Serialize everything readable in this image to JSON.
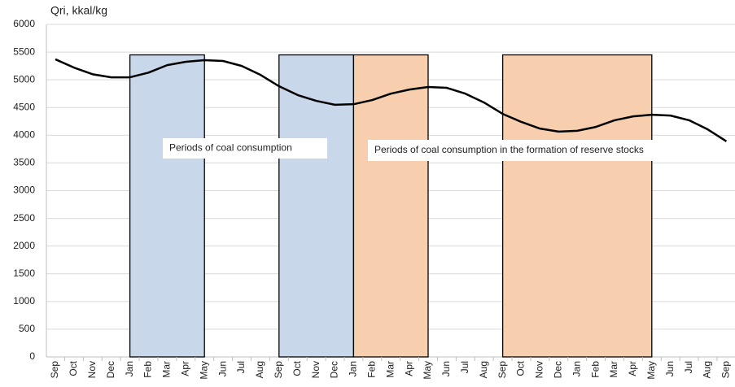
{
  "chart_data": {
    "type": "line",
    "y_axis_label": "Qri, kkal/kg",
    "categories": [
      "Sep",
      "Oct",
      "Nov",
      "Dec",
      "Jan",
      "Feb",
      "Mar",
      "Apr",
      "May",
      "Jun",
      "Jul",
      "Aug",
      "Sep",
      "Oct",
      "Nov",
      "Dec",
      "Jan",
      "Feb",
      "Mar",
      "Apr",
      "May",
      "Jun",
      "Jul",
      "Aug",
      "Sep",
      "Oct",
      "Nov",
      "Dec",
      "Jan",
      "Feb",
      "Mar",
      "Apr",
      "May",
      "Jun",
      "Jul",
      "Aug",
      "Sep"
    ],
    "values": [
      5370,
      5220,
      5100,
      5045,
      5045,
      5130,
      5265,
      5325,
      5355,
      5340,
      5250,
      5090,
      4885,
      4725,
      4620,
      4550,
      4560,
      4635,
      4750,
      4825,
      4870,
      4855,
      4750,
      4590,
      4385,
      4240,
      4120,
      4065,
      4080,
      4150,
      4270,
      4340,
      4370,
      4355,
      4270,
      4105,
      3890
    ],
    "color": "#000000",
    "ylim": [
      0,
      6000
    ],
    "yticks": [
      0,
      500,
      1000,
      1500,
      2000,
      2500,
      3000,
      3500,
      4000,
      4500,
      5000,
      5500,
      6000
    ],
    "grid": true,
    "shaded_regions": [
      {
        "start": 4,
        "end": 8,
        "ymax": 5450,
        "color": "#c8d7ea"
      },
      {
        "start": 12,
        "end": 16,
        "ymax": 5450,
        "color": "#c8d7ea"
      },
      {
        "start": 16,
        "end": 20,
        "ymax": 5450,
        "color": "#f8cfae"
      },
      {
        "start": 24,
        "end": 32,
        "ymax": 5450,
        "color": "#f8cfae"
      }
    ],
    "annotations": [
      {
        "text": "Periods of coal consumption"
      },
      {
        "text": "Periods  of coal consumption in the formation of reserve stocks"
      }
    ]
  }
}
